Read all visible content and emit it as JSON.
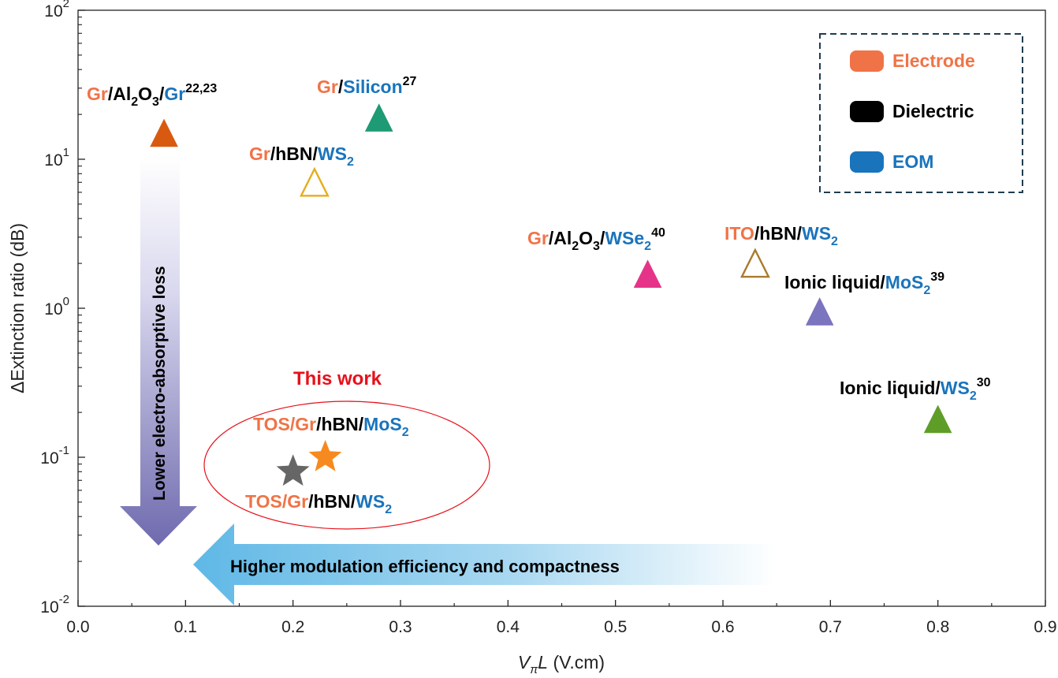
{
  "colors": {
    "electrode": "#F07347",
    "dielectric": "#000000",
    "eom": "#1A74BC",
    "this_work": "#E8101A"
  },
  "chart_data": {
    "type": "scatter",
    "title": "",
    "xlabel": {
      "var_main": "V",
      "var_sub": "π",
      "var_tail": "L",
      "unit": " (V.cm)"
    },
    "ylabel": {
      "symbol": "Δ",
      "text": "Extinction ratio (dB)"
    },
    "xlim": [
      0.0,
      0.9
    ],
    "ylim": [
      0.01,
      100
    ],
    "yscale": "log",
    "x_ticks": [
      "0.0",
      "0.1",
      "0.2",
      "0.3",
      "0.4",
      "0.5",
      "0.6",
      "0.7",
      "0.8",
      "0.9"
    ],
    "y_ticks": [
      {
        "value": 0.01,
        "base": "10",
        "exp": "-2"
      },
      {
        "value": 0.1,
        "base": "10",
        "exp": "-1"
      },
      {
        "value": 1,
        "base": "10",
        "exp": "0"
      },
      {
        "value": 10,
        "base": "10",
        "exp": "1"
      },
      {
        "value": 100,
        "base": "10",
        "exp": "2"
      }
    ],
    "points": [
      {
        "id": "gr-al2o3-gr",
        "x": 0.08,
        "y": 15,
        "marker": "triangle",
        "filled": true,
        "color": "#D85A10"
      },
      {
        "id": "gr-silicon",
        "x": 0.28,
        "y": 19,
        "marker": "triangle",
        "filled": true,
        "color": "#1E9A74"
      },
      {
        "id": "gr-hbn-ws2",
        "x": 0.22,
        "y": 7,
        "marker": "triangle",
        "filled": false,
        "color": "#E5AE1E"
      },
      {
        "id": "gr-al2o3-wse2",
        "x": 0.53,
        "y": 1.7,
        "marker": "triangle",
        "filled": true,
        "color": "#E6338A"
      },
      {
        "id": "ito-hbn-ws2",
        "x": 0.63,
        "y": 2.0,
        "marker": "triangle",
        "filled": false,
        "color": "#A87B2E"
      },
      {
        "id": "ionic-liquid-mos2",
        "x": 0.69,
        "y": 0.95,
        "marker": "triangle",
        "filled": true,
        "color": "#7B74BE"
      },
      {
        "id": "ionic-liquid-ws2",
        "x": 0.8,
        "y": 0.18,
        "marker": "triangle",
        "filled": true,
        "color": "#5E9E28"
      },
      {
        "id": "this-work-mos2",
        "x": 0.23,
        "y": 0.1,
        "marker": "star",
        "filled": true,
        "color": "#F78A1E"
      },
      {
        "id": "this-work-ws2",
        "x": 0.2,
        "y": 0.08,
        "marker": "star",
        "filled": true,
        "color": "#666666"
      }
    ],
    "labels": [
      {
        "id": "lab-gr-al2o3-gr",
        "parts": [
          {
            "t": "Gr",
            "c": "electrode"
          },
          {
            "t": "/Al",
            "c": "dielectric"
          },
          {
            "t": "2",
            "c": "dielectric",
            "sub": true
          },
          {
            "t": "O",
            "c": "dielectric"
          },
          {
            "t": "3",
            "c": "dielectric",
            "sub": true
          },
          {
            "t": "/",
            "c": "dielectric"
          },
          {
            "t": "Gr",
            "c": "eom"
          },
          {
            "t": "22,23",
            "c": "dielectric",
            "sup": true
          }
        ]
      },
      {
        "id": "lab-gr-silicon",
        "parts": [
          {
            "t": "Gr",
            "c": "electrode"
          },
          {
            "t": "/",
            "c": "dielectric"
          },
          {
            "t": "Silicon",
            "c": "eom"
          },
          {
            "t": "27",
            "c": "dielectric",
            "sup": true
          }
        ]
      },
      {
        "id": "lab-gr-hbn-ws2",
        "parts": [
          {
            "t": "Gr",
            "c": "electrode"
          },
          {
            "t": "/hBN/",
            "c": "dielectric"
          },
          {
            "t": "WS",
            "c": "eom"
          },
          {
            "t": "2",
            "c": "eom",
            "sub": true
          }
        ]
      },
      {
        "id": "lab-gr-al2o3-wse2",
        "parts": [
          {
            "t": "Gr",
            "c": "electrode"
          },
          {
            "t": "/Al",
            "c": "dielectric"
          },
          {
            "t": "2",
            "c": "dielectric",
            "sub": true
          },
          {
            "t": "O",
            "c": "dielectric"
          },
          {
            "t": "3",
            "c": "dielectric",
            "sub": true
          },
          {
            "t": "/",
            "c": "dielectric"
          },
          {
            "t": "WSe",
            "c": "eom"
          },
          {
            "t": "2",
            "c": "eom",
            "sub": true
          },
          {
            "t": "40",
            "c": "dielectric",
            "sup": true
          }
        ]
      },
      {
        "id": "lab-ito-hbn-ws2",
        "parts": [
          {
            "t": "ITO",
            "c": "electrode"
          },
          {
            "t": "/hBN/",
            "c": "dielectric"
          },
          {
            "t": "WS",
            "c": "eom"
          },
          {
            "t": "2",
            "c": "eom",
            "sub": true
          }
        ]
      },
      {
        "id": "lab-ionic-liquid-mos2",
        "parts": [
          {
            "t": "Ionic liquid/",
            "c": "dielectric"
          },
          {
            "t": "MoS",
            "c": "eom"
          },
          {
            "t": "2",
            "c": "eom",
            "sub": true
          },
          {
            "t": "39",
            "c": "dielectric",
            "sup": true
          }
        ]
      },
      {
        "id": "lab-ionic-liquid-ws2",
        "parts": [
          {
            "t": "Ionic liquid/",
            "c": "dielectric"
          },
          {
            "t": "WS",
            "c": "eom"
          },
          {
            "t": "2",
            "c": "eom",
            "sub": true
          },
          {
            "t": "30",
            "c": "dielectric",
            "sup": true
          }
        ]
      },
      {
        "id": "lab-tos-mos2",
        "parts": [
          {
            "t": "TOS/Gr",
            "c": "electrode"
          },
          {
            "t": "/hBN/",
            "c": "dielectric"
          },
          {
            "t": "MoS",
            "c": "eom"
          },
          {
            "t": "2",
            "c": "eom",
            "sub": true
          }
        ]
      },
      {
        "id": "lab-tos-ws2",
        "parts": [
          {
            "t": "TOS/Gr",
            "c": "electrode"
          },
          {
            "t": "/hBN/",
            "c": "dielectric"
          },
          {
            "t": "WS",
            "c": "eom"
          },
          {
            "t": "2",
            "c": "eom",
            "sub": true
          }
        ]
      }
    ],
    "this_work_label": "This work",
    "legend": {
      "placement": "top-right",
      "items": [
        {
          "label": "Electrode",
          "color": "#F07347"
        },
        {
          "label": "Dielectric",
          "color": "#000000"
        },
        {
          "label": "EOM",
          "color": "#1A74BC"
        }
      ]
    },
    "annotations": {
      "down_arrow": "Lower electro-absorptive loss",
      "left_arrow": "Higher modulation efficiency and compactness"
    }
  }
}
